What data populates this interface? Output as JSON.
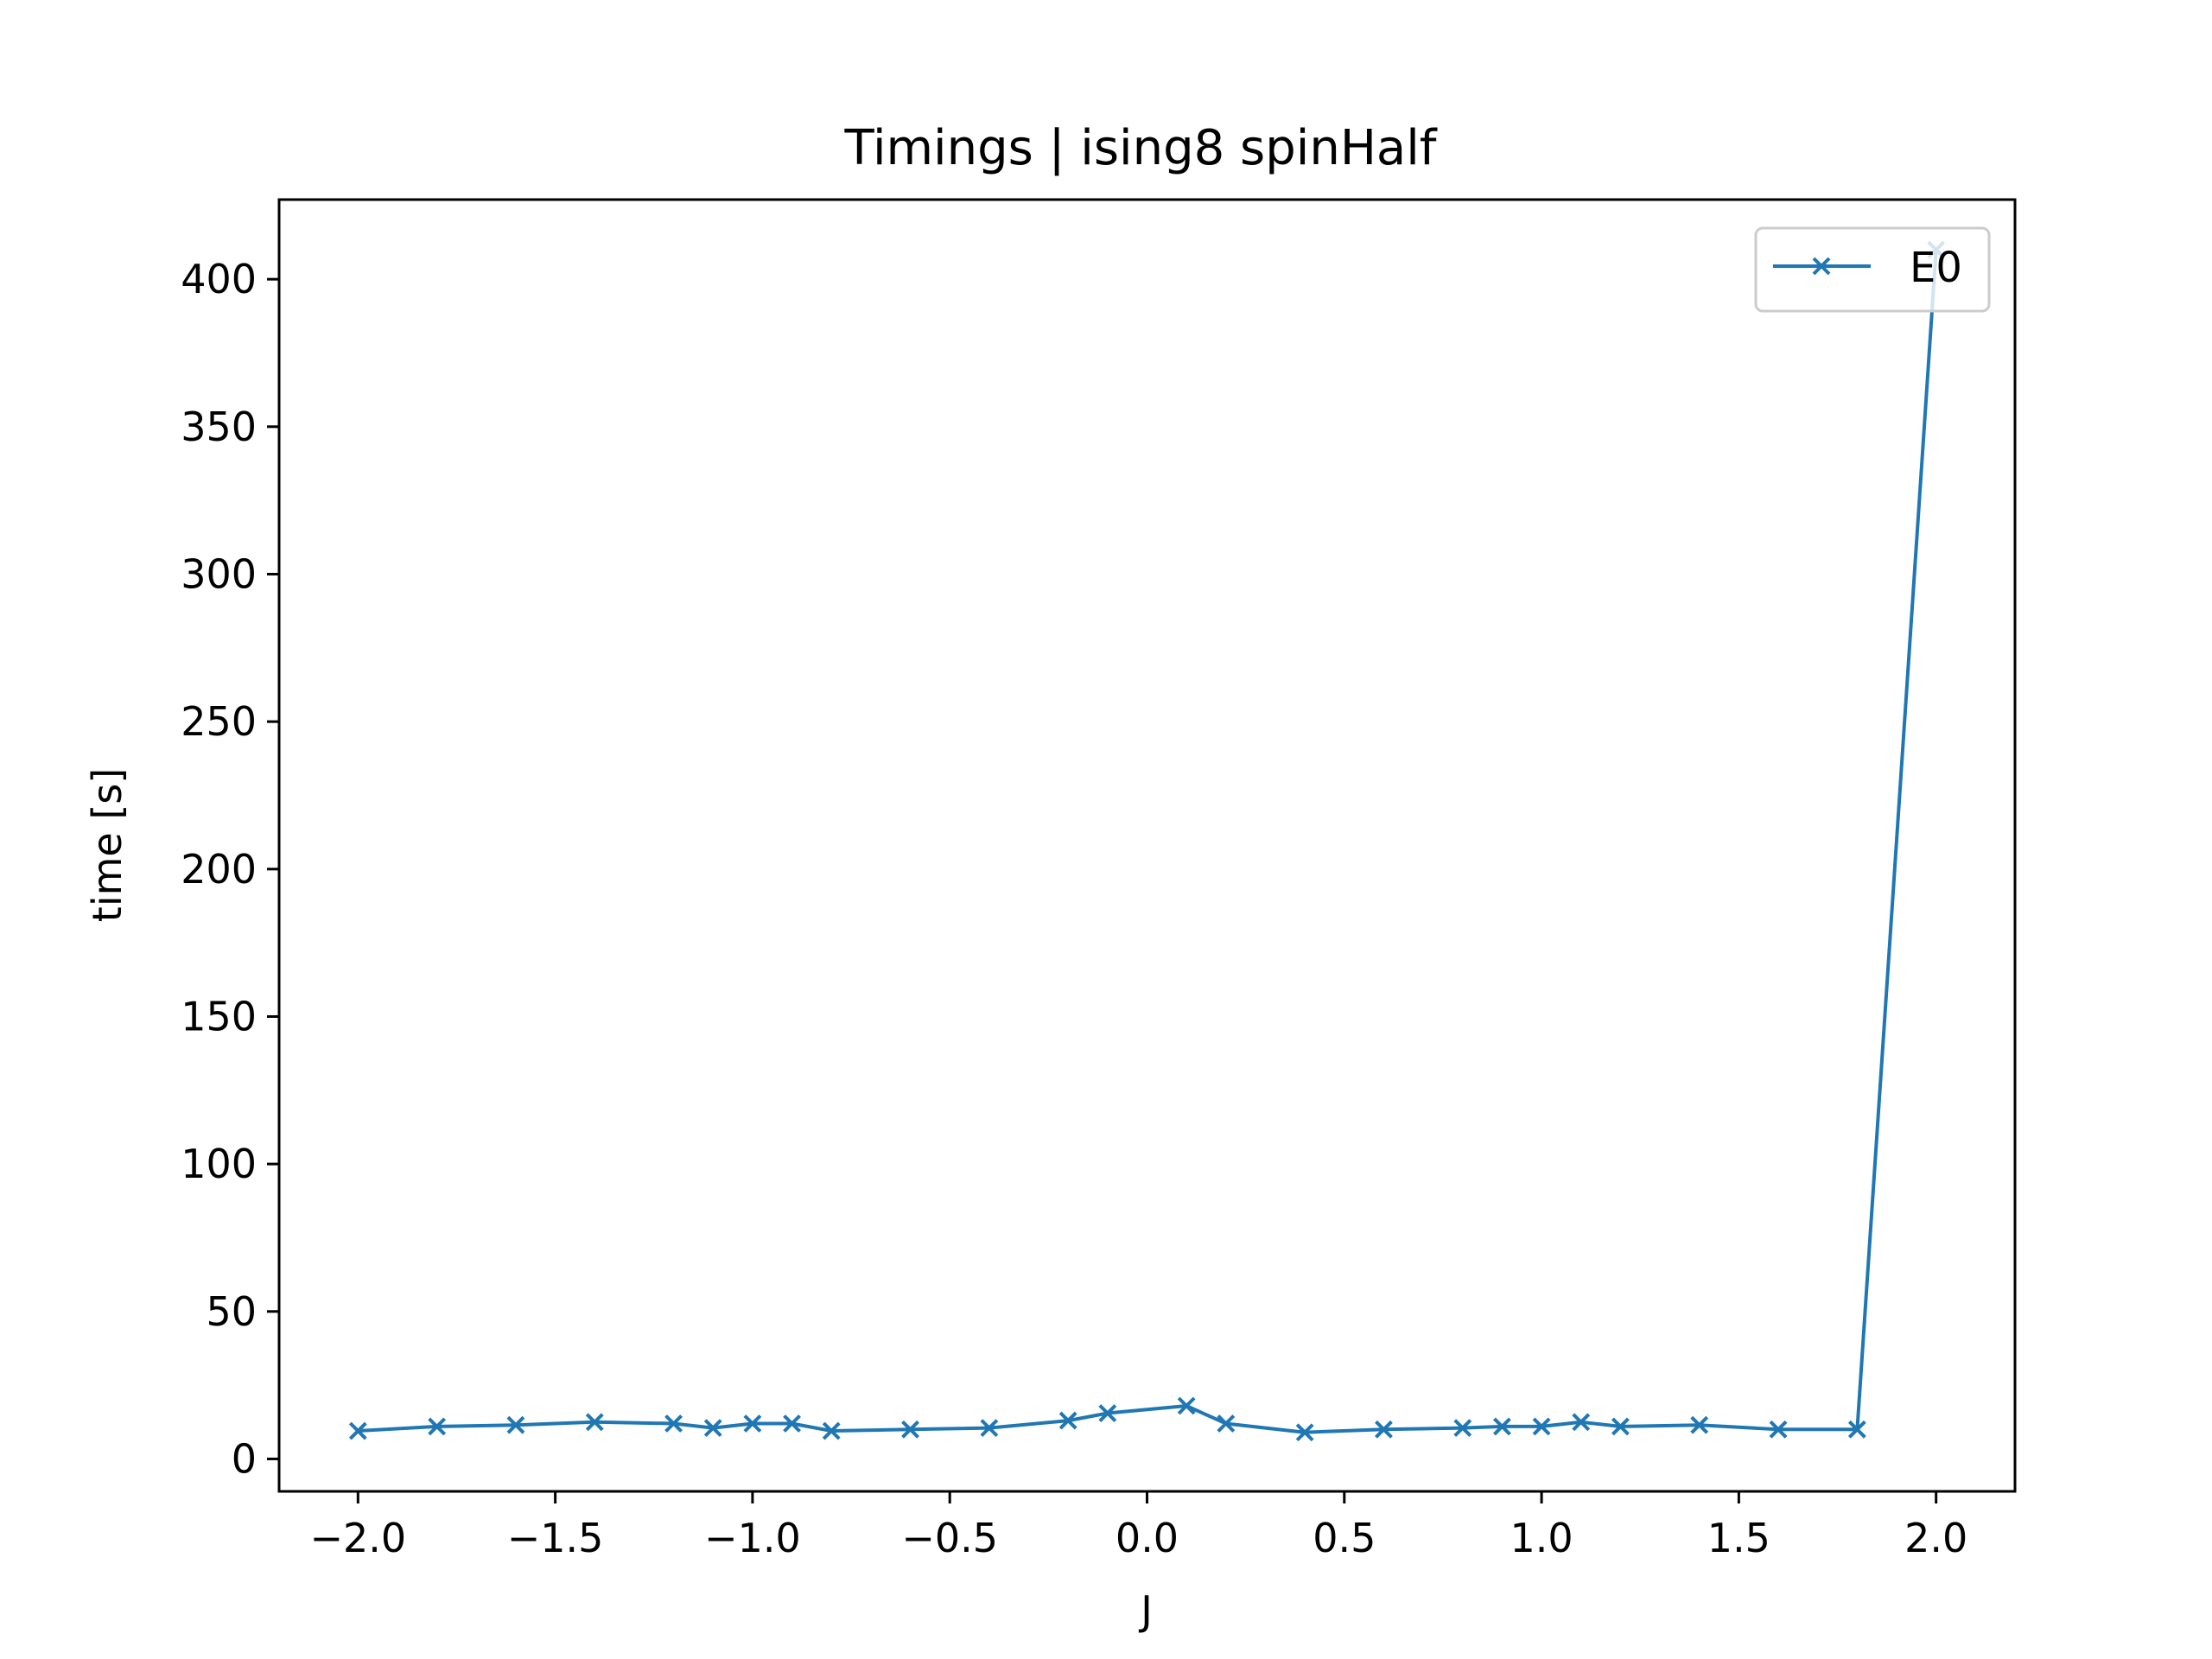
{
  "chart_data": {
    "type": "line",
    "title": "Timings | ising8 spinHalf",
    "xlabel": "J",
    "ylabel": "time [s]",
    "xlim": [
      -2.2,
      2.2
    ],
    "ylim": [
      -11,
      427
    ],
    "xticks": [
      -2.0,
      -1.5,
      -1.0,
      -0.5,
      0.0,
      0.5,
      1.0,
      1.5,
      2.0
    ],
    "xtick_labels": [
      "−2.0",
      "−1.5",
      "−1.0",
      "−0.5",
      "0.0",
      "0.5",
      "1.0",
      "1.5",
      "2.0"
    ],
    "yticks": [
      0,
      50,
      100,
      150,
      200,
      250,
      300,
      350,
      400
    ],
    "ytick_labels": [
      "0",
      "50",
      "100",
      "150",
      "200",
      "250",
      "300",
      "350",
      "400"
    ],
    "grid": false,
    "legend_position": "top-right",
    "series": [
      {
        "name": "E0",
        "color": "#1f77b4",
        "marker": "x",
        "x": [
          -2.0,
          -1.8,
          -1.6,
          -1.4,
          -1.2,
          -1.1,
          -1.0,
          -0.9,
          -0.8,
          -0.6,
          -0.4,
          -0.2,
          -0.1,
          0.1,
          0.2,
          0.4,
          0.6,
          0.8,
          0.9,
          1.0,
          1.1,
          1.2,
          1.4,
          1.6,
          1.8,
          2.0
        ],
        "y": [
          9.5,
          11,
          11.5,
          12.5,
          12,
          10.5,
          12,
          12,
          9.5,
          10,
          10.5,
          13,
          15.5,
          18,
          12,
          9,
          10,
          10.5,
          11,
          11,
          12.5,
          11,
          11.5,
          10,
          10,
          410
        ]
      }
    ]
  }
}
